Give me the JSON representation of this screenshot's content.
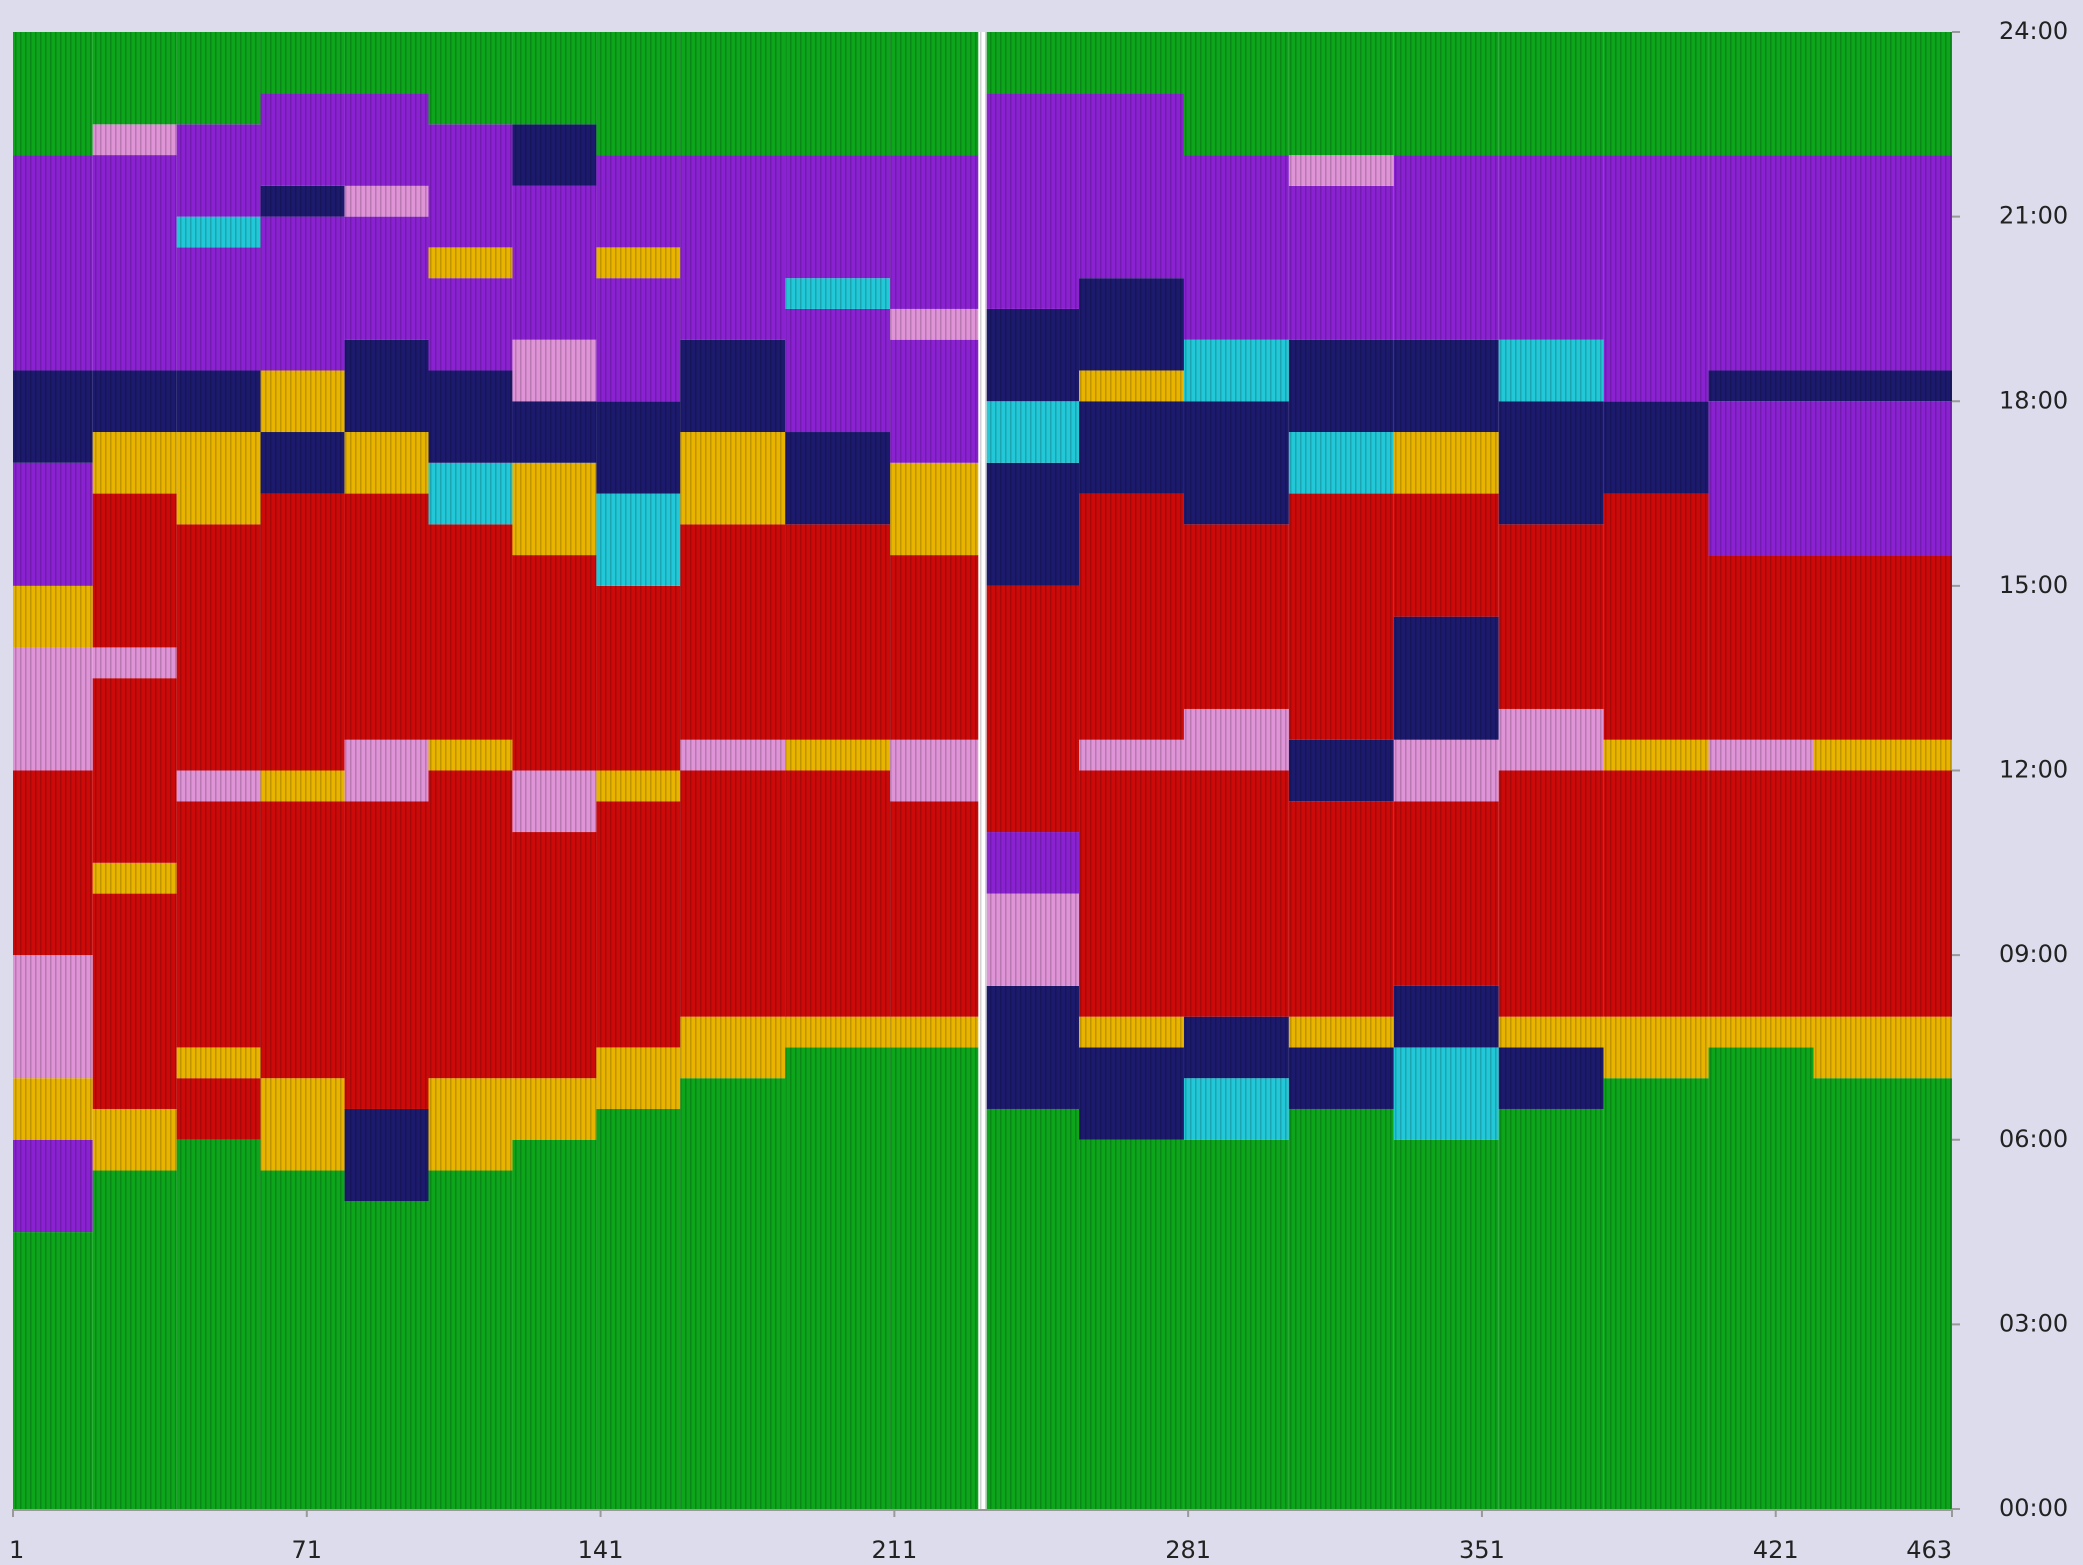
{
  "chart_data": {
    "type": "activity",
    "xlim": [
      1,
      463
    ],
    "xticks": [
      1,
      71,
      141,
      211,
      281,
      351,
      421,
      463
    ],
    "ylim": [
      0,
      24
    ],
    "yticks": [
      {
        "value": 0,
        "label": "00:00"
      },
      {
        "value": 3,
        "label": "03:00"
      },
      {
        "value": 6,
        "label": "06:00"
      },
      {
        "value": 9,
        "label": "09:00"
      },
      {
        "value": 12,
        "label": "12:00"
      },
      {
        "value": 15,
        "label": "15:00"
      },
      {
        "value": 18,
        "label": "18:00"
      },
      {
        "value": 21,
        "label": "21:00"
      },
      {
        "value": 24,
        "label": "24:00"
      }
    ],
    "palette": [
      "#0ca51c",
      "#cc0a0a",
      "#8a22d2",
      "#e094d8",
      "#e8b400",
      "#1c1a6c",
      "#22c8d8"
    ],
    "columns": [
      {
        "x": [
          1,
          20
        ],
        "hours": [
          4.5,
          1.5,
          1,
          2,
          3,
          2,
          1,
          2,
          1.5,
          3.5,
          2
        ],
        "colors": [
          0,
          2,
          4,
          3,
          1,
          3,
          4,
          2,
          5,
          2,
          0
        ]
      },
      {
        "x": [
          20,
          40
        ],
        "hours": [
          5.5,
          1,
          3.5,
          0.5,
          3,
          0.5,
          2.5,
          1,
          1,
          3.5,
          0.5,
          1.5
        ],
        "colors": [
          0,
          4,
          1,
          4,
          1,
          3,
          1,
          4,
          5,
          2,
          3,
          0
        ]
      },
      {
        "x": [
          40,
          60
        ],
        "hours": [
          6,
          1,
          0.5,
          4,
          0.5,
          4,
          1.5,
          1,
          2,
          0.5,
          1.5,
          1.5
        ],
        "colors": [
          0,
          1,
          4,
          1,
          3,
          1,
          4,
          5,
          2,
          6,
          2,
          0
        ]
      },
      {
        "x": [
          60,
          80
        ],
        "hours": [
          5.5,
          1.5,
          4.5,
          0.5,
          4.5,
          1,
          1,
          2.5,
          0.5,
          1.5,
          1
        ],
        "colors": [
          0,
          4,
          1,
          4,
          1,
          5,
          4,
          2,
          5,
          2,
          0
        ]
      },
      {
        "x": [
          80,
          100
        ],
        "hours": [
          5,
          1.5,
          5,
          1,
          4,
          1,
          1.5,
          2,
          0.5,
          1.5,
          1
        ],
        "colors": [
          0,
          5,
          1,
          3,
          1,
          4,
          5,
          2,
          3,
          2,
          0
        ]
      },
      {
        "x": [
          100,
          120
        ],
        "hours": [
          5.5,
          1.5,
          5,
          0.5,
          3.5,
          1,
          1.5,
          1.5,
          0.5,
          2,
          1.5
        ],
        "colors": [
          0,
          4,
          1,
          4,
          1,
          6,
          5,
          2,
          4,
          2,
          0
        ]
      },
      {
        "x": [
          120,
          140
        ],
        "hours": [
          6,
          1,
          4,
          1,
          3.5,
          1.5,
          1,
          1,
          2.5,
          1,
          1.5
        ],
        "colors": [
          0,
          4,
          1,
          3,
          1,
          4,
          5,
          3,
          2,
          5,
          0
        ]
      },
      {
        "x": [
          140,
          160
        ],
        "hours": [
          6.5,
          1,
          4,
          0.5,
          3,
          1.5,
          1.5,
          2,
          0.5,
          1.5,
          2
        ],
        "colors": [
          0,
          4,
          1,
          4,
          1,
          6,
          5,
          2,
          4,
          2,
          0
        ]
      },
      {
        "x": [
          160,
          185
        ],
        "hours": [
          7,
          1,
          4,
          0.5,
          3.5,
          1.5,
          1.5,
          3,
          2
        ],
        "colors": [
          0,
          4,
          1,
          3,
          1,
          4,
          5,
          2,
          0
        ]
      },
      {
        "x": [
          185,
          210
        ],
        "hours": [
          7.5,
          0.5,
          4,
          0.5,
          3.5,
          1.5,
          2,
          0.5,
          2,
          2
        ],
        "colors": [
          0,
          4,
          1,
          4,
          1,
          5,
          2,
          6,
          2,
          0
        ]
      },
      {
        "x": [
          210,
          231
        ],
        "hours": [
          7.5,
          0.5,
          3.5,
          1,
          3,
          1.5,
          2,
          0.5,
          2.5,
          2
        ],
        "colors": [
          0,
          4,
          1,
          3,
          1,
          4,
          2,
          3,
          2,
          0
        ]
      },
      {
        "x": [
          233,
          255
        ],
        "hours": [
          6.5,
          2,
          1.5,
          1,
          4,
          2,
          1,
          1.5,
          3.5,
          1
        ],
        "colors": [
          0,
          5,
          3,
          2,
          1,
          5,
          6,
          5,
          2,
          0
        ]
      },
      {
        "x": [
          255,
          280
        ],
        "hours": [
          6,
          1.5,
          0.5,
          4,
          0.5,
          4,
          1.5,
          0.5,
          1.5,
          3,
          1
        ],
        "colors": [
          0,
          5,
          4,
          1,
          3,
          1,
          5,
          4,
          5,
          2,
          0
        ]
      },
      {
        "x": [
          280,
          305
        ],
        "hours": [
          6,
          1,
          1,
          4,
          1,
          3,
          2,
          1,
          3,
          2
        ],
        "colors": [
          0,
          6,
          5,
          1,
          3,
          1,
          5,
          6,
          2,
          0
        ]
      },
      {
        "x": [
          305,
          330
        ],
        "hours": [
          6.5,
          1,
          0.5,
          3.5,
          1,
          4,
          1,
          1.5,
          2.5,
          0.5,
          2
        ],
        "colors": [
          0,
          5,
          4,
          1,
          5,
          1,
          6,
          5,
          2,
          3,
          0
        ]
      },
      {
        "x": [
          330,
          355
        ],
        "hours": [
          6,
          1.5,
          1,
          3,
          1,
          2,
          2,
          1,
          1.5,
          3,
          2
        ],
        "colors": [
          0,
          6,
          5,
          1,
          3,
          5,
          1,
          4,
          5,
          2,
          0
        ]
      },
      {
        "x": [
          355,
          380
        ],
        "hours": [
          6.5,
          1,
          0.5,
          4,
          1,
          3,
          2,
          1,
          3,
          2
        ],
        "colors": [
          0,
          5,
          4,
          1,
          3,
          1,
          5,
          6,
          2,
          0
        ]
      },
      {
        "x": [
          380,
          405
        ],
        "hours": [
          7,
          1,
          4,
          0.5,
          4,
          1.5,
          4,
          2
        ],
        "colors": [
          0,
          4,
          1,
          4,
          1,
          5,
          2,
          0
        ]
      },
      {
        "x": [
          405,
          430
        ],
        "hours": [
          7.5,
          0.5,
          4,
          0.5,
          3,
          2.5,
          0.5,
          3.5,
          2
        ],
        "colors": [
          0,
          4,
          1,
          3,
          1,
          2,
          5,
          2,
          0
        ]
      },
      {
        "x": [
          430,
          463
        ],
        "hours": [
          7,
          1,
          4,
          0.5,
          3,
          2.5,
          0.5,
          3.5,
          2
        ],
        "colors": [
          0,
          4,
          1,
          4,
          1,
          2,
          5,
          2,
          0
        ]
      }
    ]
  }
}
